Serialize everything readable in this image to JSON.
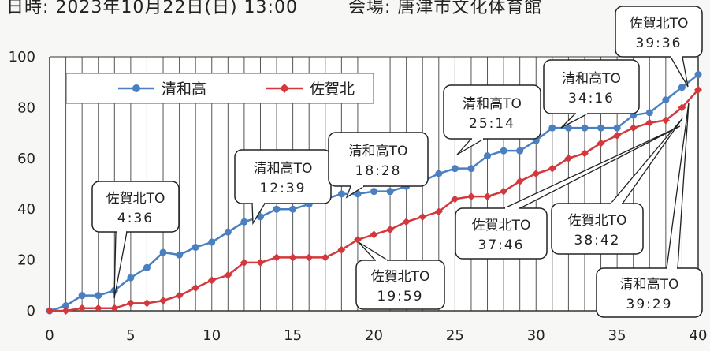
{
  "header": {
    "date_time": "日時: 2023年10月22日(日) 13:00",
    "venue": "会場: 唐津市文化体育館"
  },
  "colors": {
    "series_a": "#4a7fc1",
    "series_b": "#d2383c",
    "grid": "#555555",
    "background": "#ffffff"
  },
  "chart_data": {
    "type": "line",
    "xlim": [
      0,
      40
    ],
    "ylim": [
      0,
      100
    ],
    "x_ticks": [
      0,
      5,
      10,
      15,
      20,
      25,
      30,
      35,
      40
    ],
    "y_ticks": [
      0,
      20,
      40,
      60,
      80,
      100
    ],
    "grid": "vertical lines at each x unit",
    "legend_position": "top-left",
    "series": [
      {
        "name": "清和高",
        "marker": "circle",
        "x": [
          0,
          1,
          2,
          3,
          4,
          5,
          6,
          7,
          8,
          9,
          10,
          11,
          12,
          13,
          14,
          15,
          16,
          17,
          18,
          19,
          20,
          21,
          22,
          23,
          24,
          25,
          26,
          27,
          28,
          29,
          30,
          31,
          32,
          33,
          34,
          35,
          36,
          37,
          38,
          39,
          40
        ],
        "y": [
          0,
          2,
          6,
          6,
          8,
          13,
          17,
          23,
          22,
          25,
          27,
          31,
          35,
          37,
          40,
          40,
          42,
          44,
          46,
          46,
          47,
          47,
          49,
          51,
          54,
          56,
          56,
          61,
          63,
          63,
          67,
          72,
          72,
          72,
          72,
          72,
          77,
          78,
          83,
          88,
          93
        ]
      },
      {
        "name": "佐賀北",
        "marker": "diamond",
        "x": [
          0,
          1,
          2,
          3,
          4,
          5,
          6,
          7,
          8,
          9,
          10,
          11,
          12,
          13,
          14,
          15,
          16,
          17,
          18,
          19,
          20,
          21,
          22,
          23,
          24,
          25,
          26,
          27,
          28,
          29,
          30,
          31,
          32,
          33,
          34,
          35,
          36,
          37,
          38,
          39,
          40
        ],
        "y": [
          0,
          0,
          1,
          1,
          1,
          3,
          3,
          4,
          6,
          9,
          12,
          14,
          19,
          19,
          21,
          21,
          21,
          21,
          24,
          28,
          30,
          32,
          35,
          37,
          39,
          44,
          45,
          45,
          47,
          51,
          54,
          56,
          60,
          62,
          66,
          69,
          72,
          74,
          75,
          80,
          87
        ]
      }
    ],
    "annotations": [
      {
        "team": "佐賀北TO",
        "time": "4:36"
      },
      {
        "team": "清和高TO",
        "time": "12:39"
      },
      {
        "team": "清和高TO",
        "time": "18:28"
      },
      {
        "team": "佐賀北TO",
        "time": "19:59"
      },
      {
        "team": "清和高TO",
        "time": "25:14"
      },
      {
        "team": "清和高TO",
        "time": "34:16"
      },
      {
        "team": "佐賀北TO",
        "time": "37:46"
      },
      {
        "team": "佐賀北TO",
        "time": "38:42"
      },
      {
        "team": "佐賀北TO",
        "time": "39:36"
      },
      {
        "team": "清和高TO",
        "time": "39:29"
      }
    ]
  }
}
